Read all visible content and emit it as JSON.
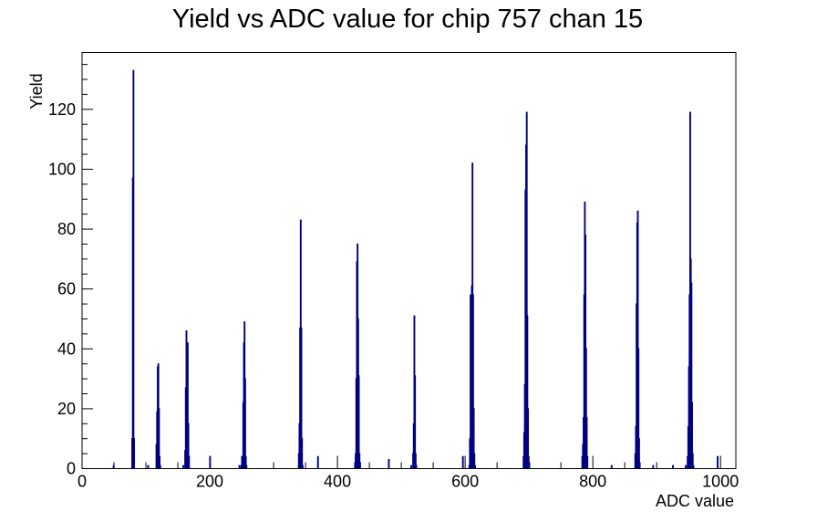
{
  "chart_data": {
    "type": "bar",
    "title": "Yield vs ADC value for chip 757 chan 15",
    "xlabel": "ADC value",
    "ylabel": "Yield",
    "xlim": [
      0,
      1024
    ],
    "ylim": [
      0,
      139
    ],
    "x_ticks": [
      0,
      200,
      400,
      600,
      800,
      1000
    ],
    "y_ticks": [
      0,
      20,
      40,
      60,
      80,
      100,
      120
    ],
    "x_minor_step": 50,
    "y_minor_step": 5,
    "series": [
      {
        "color": "#000080",
        "points": [
          [
            49,
            1
          ],
          [
            78,
            10
          ],
          [
            79,
            97
          ],
          [
            80,
            133
          ],
          [
            81,
            10
          ],
          [
            103,
            1
          ],
          [
            116,
            8
          ],
          [
            117,
            19
          ],
          [
            118,
            34
          ],
          [
            119,
            35
          ],
          [
            120,
            20
          ],
          [
            121,
            4
          ],
          [
            122,
            1
          ],
          [
            158,
            1
          ],
          [
            161,
            6
          ],
          [
            162,
            27
          ],
          [
            163,
            46
          ],
          [
            164,
            26
          ],
          [
            165,
            42
          ],
          [
            166,
            15
          ],
          [
            167,
            4
          ],
          [
            200,
            4
          ],
          [
            246,
            1
          ],
          [
            249,
            1
          ],
          [
            250,
            4
          ],
          [
            251,
            4
          ],
          [
            252,
            22
          ],
          [
            253,
            42
          ],
          [
            254,
            49
          ],
          [
            255,
            30
          ],
          [
            256,
            4
          ],
          [
            257,
            1
          ],
          [
            339,
            5
          ],
          [
            340,
            15
          ],
          [
            341,
            47
          ],
          [
            342,
            83
          ],
          [
            343,
            47
          ],
          [
            344,
            10
          ],
          [
            345,
            1
          ],
          [
            369,
            4
          ],
          [
            427,
            2
          ],
          [
            428,
            5
          ],
          [
            429,
            30
          ],
          [
            430,
            69
          ],
          [
            431,
            75
          ],
          [
            432,
            50
          ],
          [
            433,
            31
          ],
          [
            434,
            5
          ],
          [
            435,
            2
          ],
          [
            480,
            3
          ],
          [
            515,
            1
          ],
          [
            518,
            5
          ],
          [
            519,
            15
          ],
          [
            520,
            51
          ],
          [
            521,
            31
          ],
          [
            522,
            5
          ],
          [
            523,
            1
          ],
          [
            596,
            4
          ],
          [
            606,
            1
          ],
          [
            607,
            10
          ],
          [
            608,
            58
          ],
          [
            609,
            49
          ],
          [
            610,
            61
          ],
          [
            611,
            102
          ],
          [
            612,
            58
          ],
          [
            613,
            20
          ],
          [
            614,
            5
          ],
          [
            615,
            1
          ],
          [
            691,
            4
          ],
          [
            692,
            12
          ],
          [
            693,
            28
          ],
          [
            694,
            93
          ],
          [
            695,
            108
          ],
          [
            696,
            119
          ],
          [
            697,
            51
          ],
          [
            698,
            20
          ],
          [
            699,
            4
          ],
          [
            700,
            2
          ],
          [
            783,
            4
          ],
          [
            784,
            8
          ],
          [
            785,
            17
          ],
          [
            786,
            58
          ],
          [
            787,
            89
          ],
          [
            788,
            78
          ],
          [
            789,
            40
          ],
          [
            790,
            17
          ],
          [
            791,
            4
          ],
          [
            829,
            1
          ],
          [
            866,
            5
          ],
          [
            867,
            14
          ],
          [
            868,
            55
          ],
          [
            869,
            82
          ],
          [
            870,
            86
          ],
          [
            871,
            40
          ],
          [
            872,
            10
          ],
          [
            873,
            2
          ],
          [
            894,
            1
          ],
          [
            925,
            1
          ],
          [
            945,
            1
          ],
          [
            948,
            4
          ],
          [
            949,
            14
          ],
          [
            950,
            34
          ],
          [
            951,
            58
          ],
          [
            952,
            119
          ],
          [
            953,
            70
          ],
          [
            954,
            62
          ],
          [
            955,
            22
          ],
          [
            956,
            5
          ],
          [
            957,
            1
          ],
          [
            995,
            4
          ]
        ]
      }
    ]
  }
}
